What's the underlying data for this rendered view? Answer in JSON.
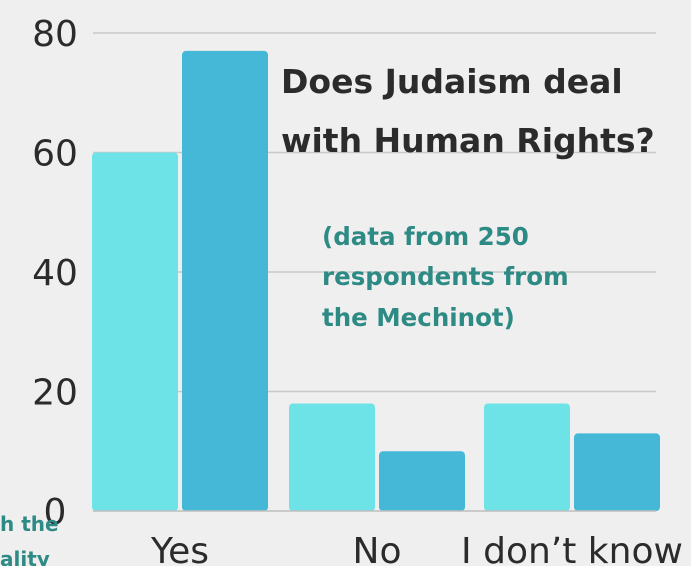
{
  "chart_data": {
    "type": "bar",
    "title_lines": [
      "Does Judaism deal",
      "with Human Rights?"
    ],
    "subtitle_lines": [
      "(data from 250",
      "respondents from",
      "the Mechinot)"
    ],
    "categories": [
      "Yes",
      "No",
      "I don’t know"
    ],
    "series": [
      {
        "values": [
          60,
          18,
          18
        ],
        "color": "#6ee3e7"
      },
      {
        "values": [
          77,
          10,
          13
        ],
        "color": "#44b8d6"
      }
    ],
    "ylim": [
      0,
      80
    ],
    "yticks": [
      0,
      20,
      40,
      60,
      80
    ],
    "grid": true,
    "cut_off_side_text": [
      "h the",
      "ality"
    ]
  }
}
